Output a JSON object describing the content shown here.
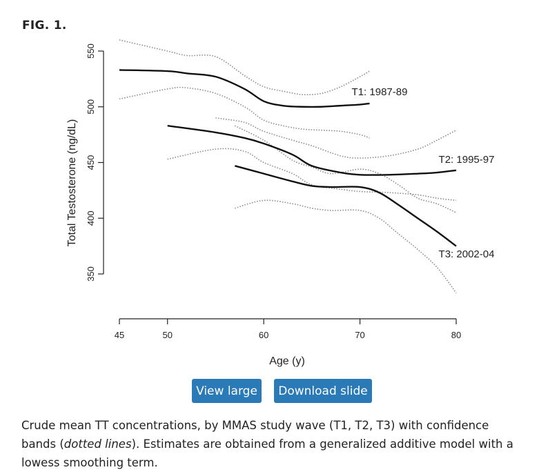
{
  "figure": {
    "label": "FIG. 1.",
    "caption_part1": "Crude mean TT concentrations, by MMAS study wave (T1, T2, T3) with confidence bands (",
    "caption_italic": "dotted lines",
    "caption_part2": "). Estimates are obtained from a generalized additive model with a lowess smoothing term."
  },
  "buttons": {
    "view_large": "View large",
    "download_slide": "Download slide"
  },
  "chart_data": {
    "type": "line",
    "title": "",
    "xlabel": "Age (y)",
    "ylabel": "Total Testosterone (ng/dL)",
    "xlim": [
      45,
      80
    ],
    "ylim": [
      350,
      550
    ],
    "xticks": [
      45,
      50,
      60,
      70,
      80
    ],
    "yticks": [
      350,
      400,
      450,
      500,
      550
    ],
    "series": [
      {
        "name": "T1: 1987-89",
        "x": [
          45,
          50,
          52,
          55,
          58,
          60,
          62,
          64,
          66,
          68,
          70,
          71
        ],
        "y": [
          533,
          532,
          530,
          527,
          516,
          505,
          501,
          500,
          500,
          501,
          502,
          503
        ],
        "lower": [
          507,
          516,
          517,
          512,
          500,
          488,
          483,
          480,
          479,
          478,
          475,
          472
        ],
        "upper": [
          560,
          550,
          546,
          545,
          528,
          518,
          514,
          511,
          512,
          518,
          527,
          532
        ]
      },
      {
        "name": "T2: 1995-97",
        "x": [
          50,
          55,
          58,
          60,
          63,
          65,
          68,
          70,
          73,
          76,
          78,
          80
        ],
        "y": [
          483,
          477,
          472,
          467,
          457,
          447,
          441,
          439,
          439,
          440,
          441,
          443
        ],
        "lower": [
          453,
          462,
          460,
          450,
          440,
          430,
          426,
          424,
          423,
          421,
          418,
          416
        ],
        "upper": [
          null,
          490,
          486,
          478,
          470,
          465,
          456,
          454,
          456,
          462,
          470,
          479
        ]
      },
      {
        "name": "T3: 2002-04",
        "x": [
          57,
          60,
          63,
          65,
          67,
          70,
          72,
          74,
          76,
          78,
          80
        ],
        "y": [
          447,
          440,
          433,
          429,
          428,
          428,
          423,
          412,
          400,
          388,
          375
        ],
        "lower": [
          409,
          416,
          413,
          409,
          407,
          407,
          400,
          386,
          372,
          356,
          333
        ],
        "upper": [
          483,
          470,
          452,
          446,
          440,
          444,
          440,
          430,
          418,
          413,
          405
        ]
      }
    ]
  }
}
